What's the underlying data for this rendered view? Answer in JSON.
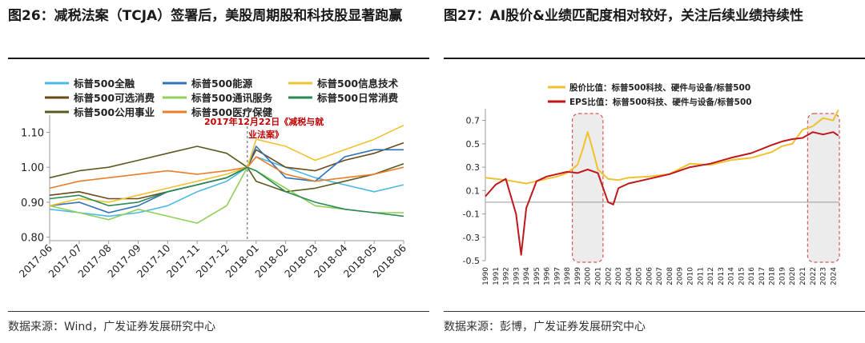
{
  "left_panel": {
    "title": "图26：减税法案（TCJA）签署后，美股周期股和科技股显著跑赢",
    "source": "数据来源：Wind，广发证券发展研究中心"
  },
  "right_panel": {
    "title": "图27：AI股价&业绩匹配度相对较好，关注后续业绩持续性",
    "source": "数据来源：彭博，广发证券发展研究中心"
  },
  "chart_data": [
    {
      "type": "line",
      "title": "",
      "xlabel": "",
      "ylabel": "",
      "x_tick_labels": [
        "2017-06",
        "2017-07",
        "2017-08",
        "2017-09",
        "2017-10",
        "2017-11",
        "2017-12",
        "2018-01",
        "2018-02",
        "2018-03",
        "2018-04",
        "2018-05",
        "2018-06"
      ],
      "y_ticks": [
        0.8,
        0.9,
        1.0,
        1.1
      ],
      "y_tick_labels": [
        "0.80",
        "0.90",
        "1.00",
        "1.10"
      ],
      "ylim": [
        0.79,
        1.14
      ],
      "xlim": [
        0,
        12
      ],
      "grid": false,
      "legend_position": "top",
      "annotation": {
        "text_line1": "2017年12月22日《减税与就",
        "text_line2": "业法案》",
        "x": 6.7,
        "color": "#c00000"
      },
      "series": [
        {
          "name": "标普500全融",
          "color": "#4cb8e6",
          "x": [
            0,
            1,
            2,
            3,
            4,
            5,
            6,
            6.7,
            7,
            8,
            9,
            10,
            11,
            12
          ],
          "values": [
            0.88,
            0.87,
            0.86,
            0.87,
            0.89,
            0.93,
            0.96,
            1.0,
            1.03,
            1.0,
            0.97,
            0.95,
            0.93,
            0.95
          ]
        },
        {
          "name": "标普500可选消费",
          "color": "#6b4a18",
          "x": [
            0,
            1,
            2,
            3,
            4,
            5,
            6,
            6.7,
            7,
            8,
            9,
            10,
            11,
            12
          ],
          "values": [
            0.92,
            0.93,
            0.91,
            0.91,
            0.93,
            0.95,
            0.97,
            1.0,
            1.05,
            1.0,
            0.99,
            1.02,
            1.04,
            1.07
          ]
        },
        {
          "name": "标普500公用事业",
          "color": "#5a5a1c",
          "x": [
            0,
            1,
            2,
            3,
            4,
            5,
            6,
            6.7,
            7,
            8,
            9,
            10,
            11,
            12
          ],
          "values": [
            0.97,
            0.99,
            1.0,
            1.02,
            1.04,
            1.06,
            1.04,
            1.0,
            0.96,
            0.93,
            0.94,
            0.96,
            0.98,
            1.01
          ]
        },
        {
          "name": "标普500能源",
          "color": "#2e72b8",
          "x": [
            0,
            1,
            2,
            3,
            4,
            5,
            6,
            6.7,
            7,
            8,
            9,
            10,
            11,
            12
          ],
          "values": [
            0.89,
            0.9,
            0.87,
            0.89,
            0.93,
            0.95,
            0.97,
            1.0,
            1.06,
            0.97,
            0.96,
            1.03,
            1.05,
            1.05
          ]
        },
        {
          "name": "标普500通讯服务",
          "color": "#8fcf5a",
          "x": [
            0,
            1,
            2,
            3,
            4,
            5,
            6,
            6.7,
            7,
            8,
            9,
            10,
            11,
            12
          ],
          "values": [
            0.89,
            0.87,
            0.85,
            0.88,
            0.86,
            0.84,
            0.89,
            1.0,
            0.99,
            0.94,
            0.89,
            0.88,
            0.87,
            0.87
          ]
        },
        {
          "name": "标普500医疗保健",
          "color": "#e87d2a",
          "x": [
            0,
            1,
            2,
            3,
            4,
            5,
            6,
            6.7,
            7,
            8,
            9,
            10,
            11,
            12
          ],
          "values": [
            0.94,
            0.96,
            0.97,
            0.98,
            0.99,
            0.98,
            0.99,
            1.0,
            1.03,
            0.98,
            0.96,
            0.97,
            0.98,
            1.0
          ]
        },
        {
          "name": "标普500信息技术",
          "color": "#f2c12e",
          "x": [
            0,
            1,
            2,
            3,
            4,
            5,
            6,
            6.7,
            7,
            8,
            9,
            10,
            11,
            12
          ],
          "values": [
            0.89,
            0.91,
            0.9,
            0.92,
            0.94,
            0.96,
            0.98,
            1.0,
            1.08,
            1.06,
            1.02,
            1.05,
            1.08,
            1.12
          ]
        },
        {
          "name": "标普500日常消费",
          "color": "#2a8a52",
          "x": [
            0,
            1,
            2,
            3,
            4,
            5,
            6,
            6.7,
            7,
            8,
            9,
            10,
            11,
            12
          ],
          "values": [
            0.91,
            0.92,
            0.89,
            0.9,
            0.93,
            0.95,
            0.97,
            1.0,
            0.99,
            0.93,
            0.9,
            0.88,
            0.87,
            0.86
          ]
        }
      ]
    },
    {
      "type": "line",
      "title": "",
      "xlabel": "",
      "ylabel": "",
      "x_tick_labels": [
        "1990",
        "1991",
        "1992",
        "1993",
        "1994",
        "1995",
        "1996",
        "1997",
        "1998",
        "1999",
        "2000",
        "2001",
        "2002",
        "2003",
        "2004",
        "2005",
        "2006",
        "2007",
        "2008",
        "2009",
        "2010",
        "2011",
        "2012",
        "2013",
        "2014",
        "2015",
        "2016",
        "2017",
        "2018",
        "2019",
        "2020",
        "2021",
        "2022",
        "2023",
        "2024"
      ],
      "y_ticks": [
        -0.5,
        -0.3,
        -0.1,
        0.1,
        0.3,
        0.5,
        0.7
      ],
      "y_tick_labels": [
        "-0.5",
        "-0.3",
        "-0.1",
        "0.1",
        "0.3",
        "0.5",
        "0.7"
      ],
      "ylim": [
        -0.5,
        0.8
      ],
      "xlim": [
        1990,
        2024.6
      ],
      "grid": false,
      "legend_position": "top-left",
      "highlight_ranges": [
        [
          1998.5,
          2001.5
        ],
        [
          2021.5,
          2024.6
        ]
      ],
      "series": [
        {
          "name": "股价比值：标普500科技、硬件与设备/标普500",
          "color": "#f2c12e",
          "x": [
            1990,
            1992,
            1994,
            1996,
            1997,
            1998,
            1999,
            1999.5,
            2000,
            2000.5,
            2001,
            2002,
            2003,
            2004,
            2006,
            2008,
            2010,
            2012,
            2014,
            2016,
            2018,
            2019,
            2020,
            2021,
            2022,
            2023,
            2024,
            2024.5
          ],
          "values": [
            0.21,
            0.19,
            0.16,
            0.2,
            0.22,
            0.25,
            0.32,
            0.45,
            0.6,
            0.45,
            0.28,
            0.2,
            0.19,
            0.21,
            0.22,
            0.24,
            0.33,
            0.32,
            0.36,
            0.38,
            0.43,
            0.48,
            0.5,
            0.62,
            0.65,
            0.72,
            0.7,
            0.79
          ]
        },
        {
          "name": "EPS比值：标普500科技、硬件与设备/标普500",
          "color": "#c0161c",
          "x": [
            1990,
            1991,
            1992,
            1993,
            1993.5,
            1994,
            1995,
            1996,
            1997,
            1998,
            1999,
            2000,
            2001,
            2002,
            2002.5,
            2003,
            2004,
            2006,
            2008,
            2010,
            2012,
            2014,
            2016,
            2018,
            2019,
            2020,
            2021,
            2022,
            2023,
            2024,
            2024.5
          ],
          "values": [
            0.05,
            0.15,
            0.2,
            -0.1,
            -0.45,
            -0.05,
            0.18,
            0.22,
            0.24,
            0.26,
            0.25,
            0.28,
            0.25,
            0.0,
            -0.02,
            0.12,
            0.16,
            0.2,
            0.24,
            0.3,
            0.33,
            0.38,
            0.42,
            0.49,
            0.52,
            0.54,
            0.55,
            0.6,
            0.58,
            0.6,
            0.57
          ]
        }
      ]
    }
  ]
}
